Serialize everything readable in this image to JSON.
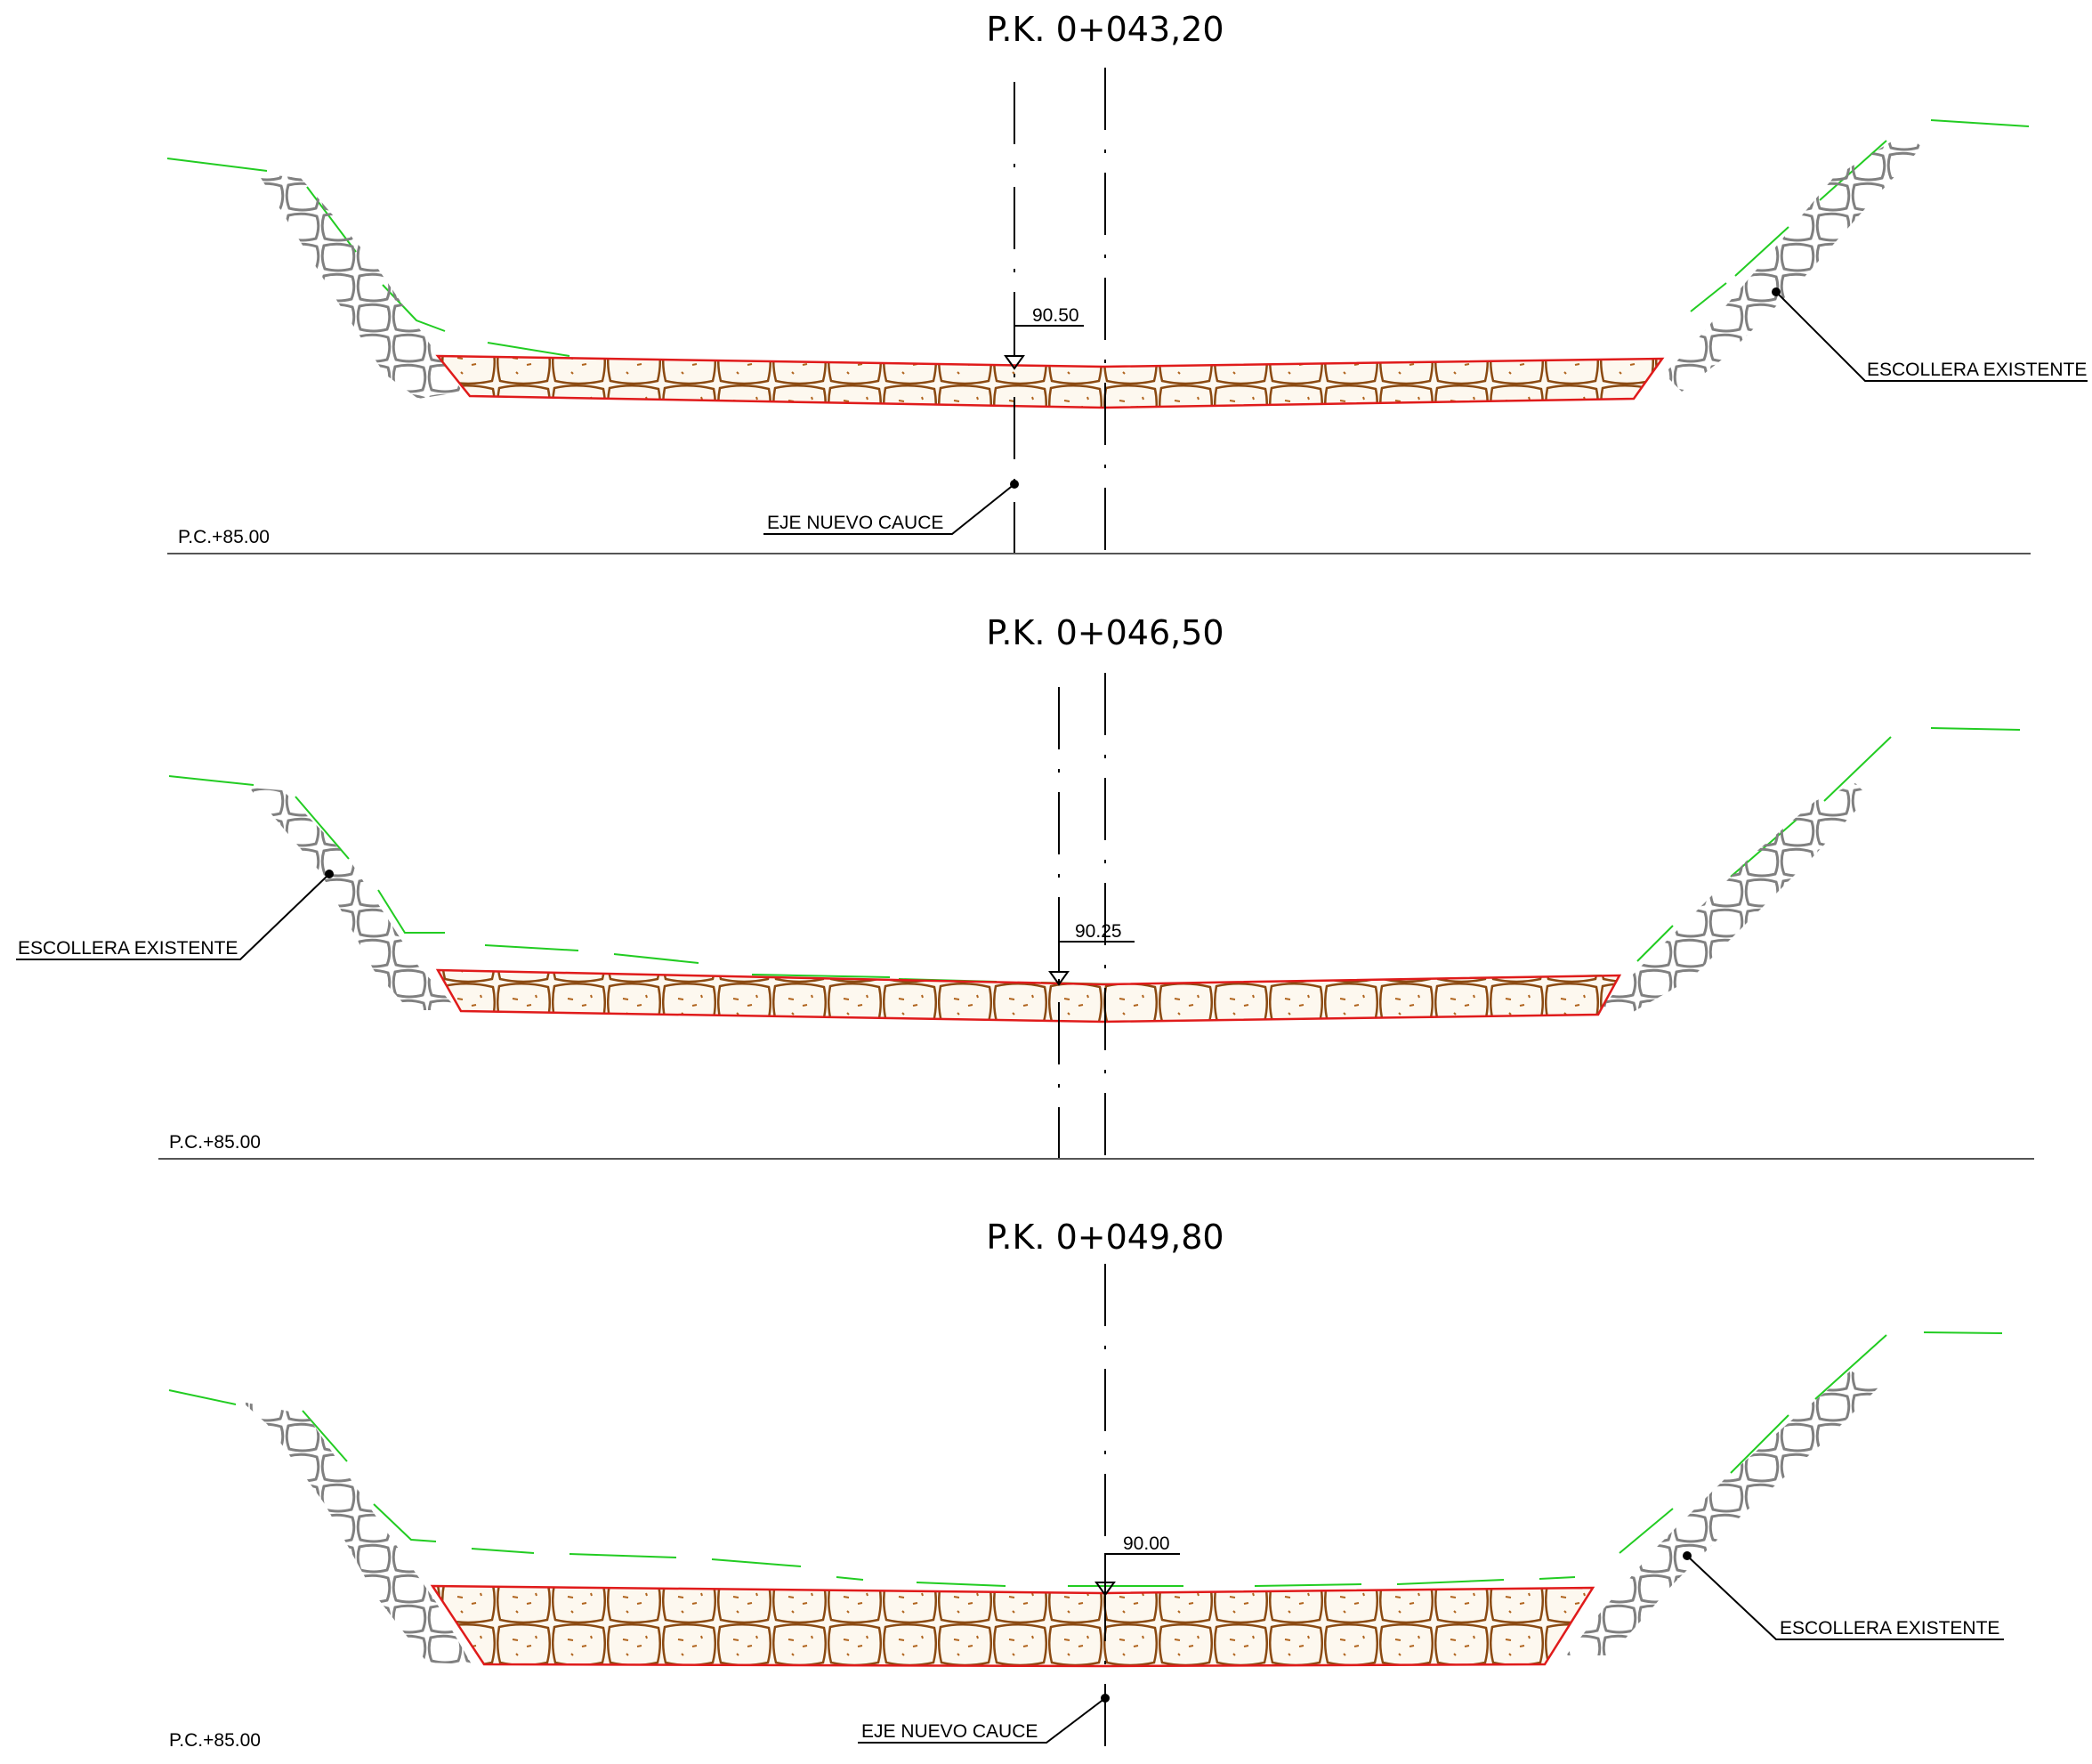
{
  "sections": [
    {
      "pk_title": "P.K. 0+043,20",
      "water_level": "90.50",
      "reference_plane": "P.C.+85.00",
      "callouts": [
        "ESCOLLERA EXISTENTE",
        "EJE NUEVO CAUCE"
      ]
    },
    {
      "pk_title": "P.K. 0+046,50",
      "water_level": "90.25",
      "reference_plane": "P.C.+85.00",
      "callouts": [
        "ESCOLLERA EXISTENTE"
      ]
    },
    {
      "pk_title": "P.K. 0+049,80",
      "water_level": "90.00",
      "reference_plane": "P.C.+85.00",
      "callouts": [
        "ESCOLLERA EXISTENTE",
        "EJE NUEVO CAUCE"
      ]
    }
  ],
  "colors": {
    "riprap_outline": "#e01b1b",
    "riprap_stone": "#8b4a12",
    "terrain": "#22cc22",
    "existing_rock": "#808080",
    "lines": "#000000"
  }
}
